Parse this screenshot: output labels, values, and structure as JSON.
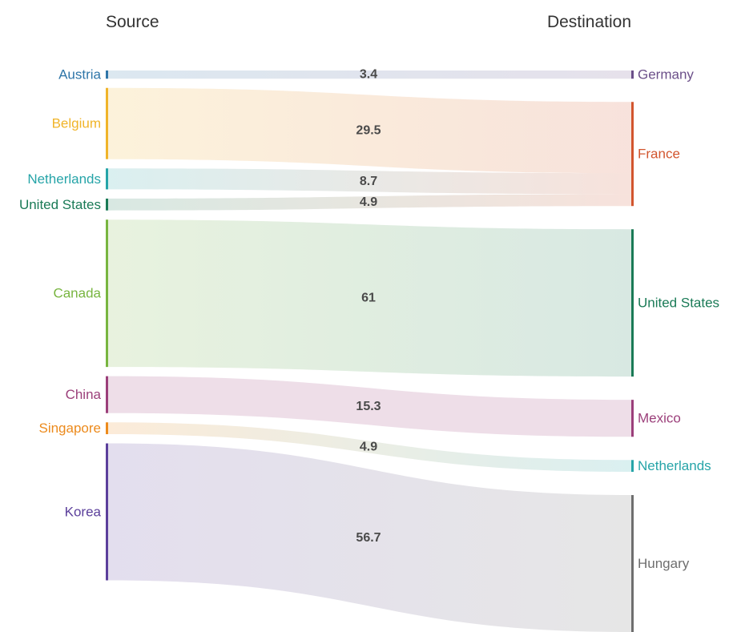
{
  "chart_data": {
    "type": "sankey",
    "headers": {
      "source": "Source",
      "destination": "Destination"
    },
    "sources": [
      {
        "name": "Austria",
        "color": "#2e75a8"
      },
      {
        "name": "Belgium",
        "color": "#f0b429"
      },
      {
        "name": "Netherlands",
        "color": "#26a4a8"
      },
      {
        "name": "United States",
        "color": "#1a7a56"
      },
      {
        "name": "Canada",
        "color": "#78b540"
      },
      {
        "name": "China",
        "color": "#9b3f7a"
      },
      {
        "name": "Singapore",
        "color": "#ec8a1c"
      },
      {
        "name": "Korea",
        "color": "#5b3f9b"
      }
    ],
    "destinations": [
      {
        "name": "Germany",
        "color": "#6b4f89"
      },
      {
        "name": "France",
        "color": "#d2552e"
      },
      {
        "name": "United States",
        "color": "#1a7a56"
      },
      {
        "name": "Mexico",
        "color": "#9b3f7a"
      },
      {
        "name": "Netherlands",
        "color": "#26a4a8"
      },
      {
        "name": "Hungary",
        "color": "#6e6e6e"
      }
    ],
    "links": [
      {
        "source": "Austria",
        "target": "Germany",
        "value": 3.4,
        "label": "3.4"
      },
      {
        "source": "Belgium",
        "target": "France",
        "value": 29.5,
        "label": "29.5"
      },
      {
        "source": "Netherlands",
        "target": "France",
        "value": 8.7,
        "label": "8.7"
      },
      {
        "source": "United States",
        "target": "France",
        "value": 4.9,
        "label": "4.9"
      },
      {
        "source": "Canada",
        "target": "United States",
        "value": 61,
        "label": "61"
      },
      {
        "source": "China",
        "target": "Mexico",
        "value": 15.3,
        "label": "15.3"
      },
      {
        "source": "Singapore",
        "target": "Netherlands",
        "value": 4.9,
        "label": "4.9"
      },
      {
        "source": "Korea",
        "target": "Hungary",
        "value": 56.7,
        "label": "56.7"
      }
    ]
  }
}
